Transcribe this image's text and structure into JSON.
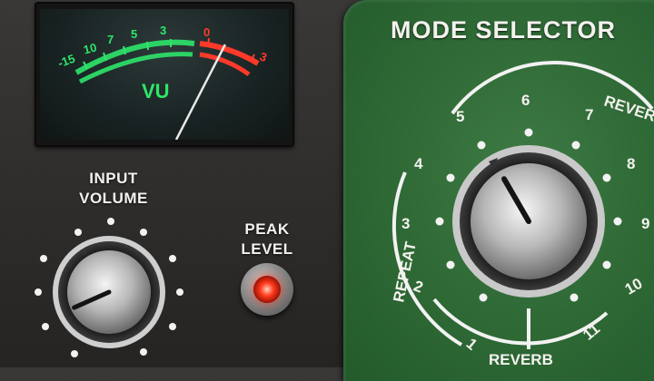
{
  "vu_meter": {
    "scale_labels": [
      "-15",
      "10",
      "7",
      "5",
      "3",
      "0",
      "3"
    ],
    "title": "VU",
    "needle_level": -2
  },
  "input_volume": {
    "label_line1": "INPUT",
    "label_line2": "VOLUME",
    "knob_value_fraction": 0.12
  },
  "peak_level": {
    "label_line1": "PEAK",
    "label_line2": "LEVEL",
    "led_on": true
  },
  "mode_selector": {
    "title": "MODE SELECTOR",
    "positions": [
      "1",
      "2",
      "3",
      "4",
      "5",
      "6",
      "7",
      "8",
      "9",
      "10",
      "11"
    ],
    "group_repeat": "REPEAT",
    "group_reverb": "REVERB",
    "group_reverse": "REVERSE",
    "selected_position": "5"
  },
  "colors": {
    "panel_green": "#2f6a36",
    "meter_green": "#2ee66a",
    "meter_red": "#ff3a2a",
    "label_white": "#f4f2ee"
  }
}
